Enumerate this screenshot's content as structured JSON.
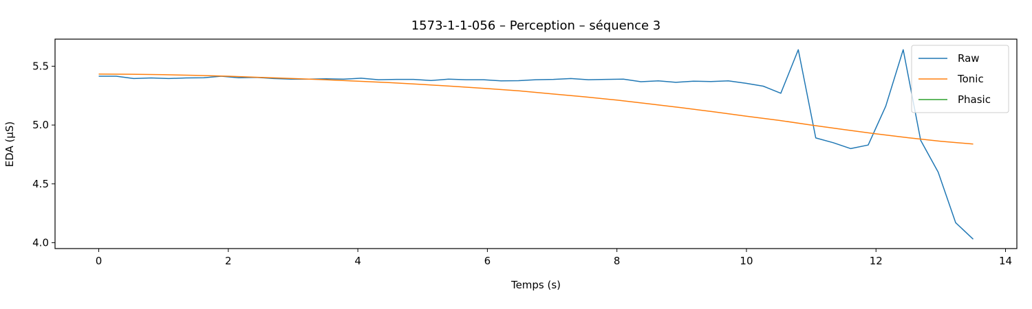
{
  "chart_data": {
    "type": "line",
    "title": "1573-1-1-056 – Perception – séquence 3",
    "xlabel": "Temps (s)",
    "ylabel": "EDA (µS)",
    "xlim": [
      -0.675,
      14.175
    ],
    "ylim": [
      3.95,
      5.73
    ],
    "xticks": [
      0,
      2,
      4,
      6,
      8,
      10,
      12,
      14
    ],
    "yticks": [
      4.0,
      4.5,
      5.0,
      5.5
    ],
    "ytick_labels": [
      "4.0",
      "4.5",
      "5.0",
      "5.5"
    ],
    "legend_position": "top-right",
    "grid": false,
    "colors": {
      "Raw": "#1f77b4",
      "Tonic": "#ff7f0e",
      "Phasic": "#2ca02c"
    },
    "series": [
      {
        "name": "Raw",
        "x": [
          0,
          0.27,
          0.54,
          0.81,
          1.08,
          1.35,
          1.62,
          1.89,
          2.16,
          2.43,
          2.7,
          2.97,
          3.24,
          3.51,
          3.78,
          4.05,
          4.32,
          4.59,
          4.86,
          5.13,
          5.4,
          5.67,
          5.94,
          6.21,
          6.48,
          6.75,
          7.02,
          7.29,
          7.56,
          7.83,
          8.1,
          8.37,
          8.64,
          8.91,
          9.18,
          9.45,
          9.72,
          9.99,
          10.26,
          10.53,
          10.8,
          11.07,
          11.34,
          11.61,
          11.88,
          12.15,
          12.42,
          12.69,
          12.96,
          13.23,
          13.5
        ],
        "values": [
          5.415,
          5.415,
          5.395,
          5.4,
          5.395,
          5.4,
          5.402,
          5.415,
          5.402,
          5.405,
          5.395,
          5.39,
          5.39,
          5.393,
          5.39,
          5.398,
          5.385,
          5.388,
          5.388,
          5.378,
          5.39,
          5.385,
          5.385,
          5.375,
          5.377,
          5.385,
          5.388,
          5.395,
          5.385,
          5.388,
          5.39,
          5.368,
          5.375,
          5.363,
          5.373,
          5.37,
          5.375,
          5.355,
          5.33,
          5.27,
          5.64,
          4.89,
          4.85,
          4.8,
          4.83,
          5.16,
          5.64,
          4.87,
          4.6,
          4.17,
          4.03
        ]
      },
      {
        "name": "Tonic",
        "x": [
          0,
          0.5,
          1,
          1.5,
          2,
          2.5,
          3,
          3.5,
          4,
          4.5,
          5,
          5.5,
          6,
          6.5,
          7,
          7.5,
          8,
          8.5,
          9,
          9.5,
          10,
          10.5,
          11,
          11.5,
          12,
          12.5,
          13,
          13.5
        ],
        "values": [
          5.433,
          5.432,
          5.428,
          5.422,
          5.415,
          5.405,
          5.395,
          5.385,
          5.372,
          5.36,
          5.345,
          5.328,
          5.31,
          5.29,
          5.265,
          5.24,
          5.212,
          5.18,
          5.147,
          5.112,
          5.075,
          5.04,
          5.0,
          4.962,
          4.925,
          4.892,
          4.862,
          4.838
        ]
      },
      {
        "name": "Phasic",
        "x": [],
        "values": []
      }
    ]
  }
}
